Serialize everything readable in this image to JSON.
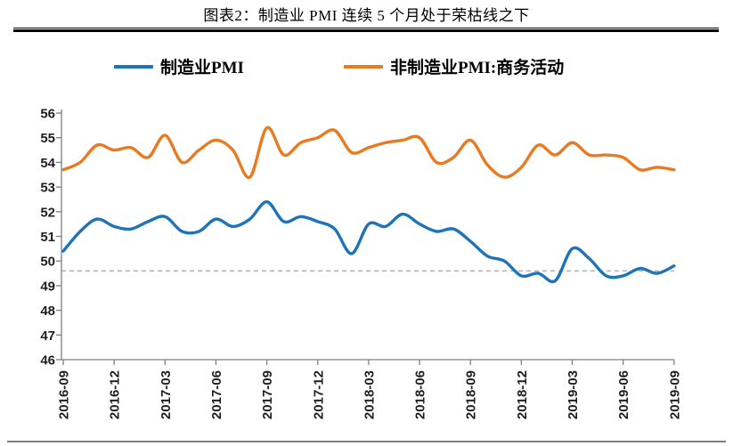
{
  "figure": {
    "title": "图表2：制造业 PMI 连续 5 个月处于荣枯线之下"
  },
  "legend": [
    {
      "label": "制造业PMI",
      "color": "#1E73B9"
    },
    {
      "label": "非制造业PMI:商务活动",
      "color": "#E87A22"
    }
  ],
  "colors": {
    "axis": "#808080",
    "tick_text": "#1f1f1f",
    "reference_line": "#A6A6A6",
    "divider": "#000000",
    "bottom_rule": "#808080"
  },
  "chart_data": {
    "type": "line",
    "title": "图表2：制造业 PMI 连续 5 个月处于荣枯线之下",
    "x": [
      "2016-09",
      "2016-10",
      "2016-11",
      "2016-12",
      "2017-01",
      "2017-02",
      "2017-03",
      "2017-04",
      "2017-05",
      "2017-06",
      "2017-07",
      "2017-08",
      "2017-09",
      "2017-10",
      "2017-11",
      "2017-12",
      "2018-01",
      "2018-02",
      "2018-03",
      "2018-04",
      "2018-05",
      "2018-06",
      "2018-07",
      "2018-08",
      "2018-09",
      "2018-10",
      "2018-11",
      "2018-12",
      "2019-01",
      "2019-02",
      "2019-03",
      "2019-04",
      "2019-05",
      "2019-06",
      "2019-07",
      "2019-08",
      "2019-09"
    ],
    "x_tick_labels": [
      "2016-09",
      "2016-12",
      "2017-03",
      "2017-06",
      "2017-09",
      "2017-12",
      "2018-03",
      "2018-06",
      "2018-09",
      "2018-12",
      "2019-03",
      "2019-06",
      "2019-09"
    ],
    "series": [
      {
        "id": "manufacturing-pmi",
        "name": "制造业PMI",
        "color": "#1E73B9",
        "values": [
          50.4,
          51.2,
          51.7,
          51.4,
          51.3,
          51.6,
          51.8,
          51.2,
          51.2,
          51.7,
          51.4,
          51.7,
          52.4,
          51.6,
          51.8,
          51.6,
          51.3,
          50.3,
          51.5,
          51.4,
          51.9,
          51.5,
          51.2,
          51.3,
          50.8,
          50.2,
          50.0,
          49.4,
          49.5,
          49.2,
          50.5,
          50.1,
          49.4,
          49.4,
          49.7,
          49.5,
          49.8
        ]
      },
      {
        "id": "non-manufacturing-pmi",
        "name": "非制造业PMI:商务活动",
        "color": "#E87A22",
        "values": [
          53.7,
          54.0,
          54.7,
          54.5,
          54.6,
          54.2,
          55.1,
          54.0,
          54.5,
          54.9,
          54.5,
          53.4,
          55.4,
          54.3,
          54.8,
          55.0,
          55.3,
          54.4,
          54.6,
          54.8,
          54.9,
          55.0,
          54.0,
          54.2,
          54.9,
          53.9,
          53.4,
          53.8,
          54.7,
          54.3,
          54.8,
          54.3,
          54.3,
          54.2,
          53.7,
          53.8,
          53.7
        ]
      }
    ],
    "ylim": [
      46,
      56
    ],
    "y_ticks": [
      46,
      47,
      48,
      49,
      50,
      51,
      52,
      53,
      54,
      55,
      56
    ],
    "reference_line": {
      "value": 49.6,
      "style": "dashed",
      "color": "#A6A6A6"
    },
    "smooth": true,
    "grid": false,
    "legend_position": "top"
  }
}
